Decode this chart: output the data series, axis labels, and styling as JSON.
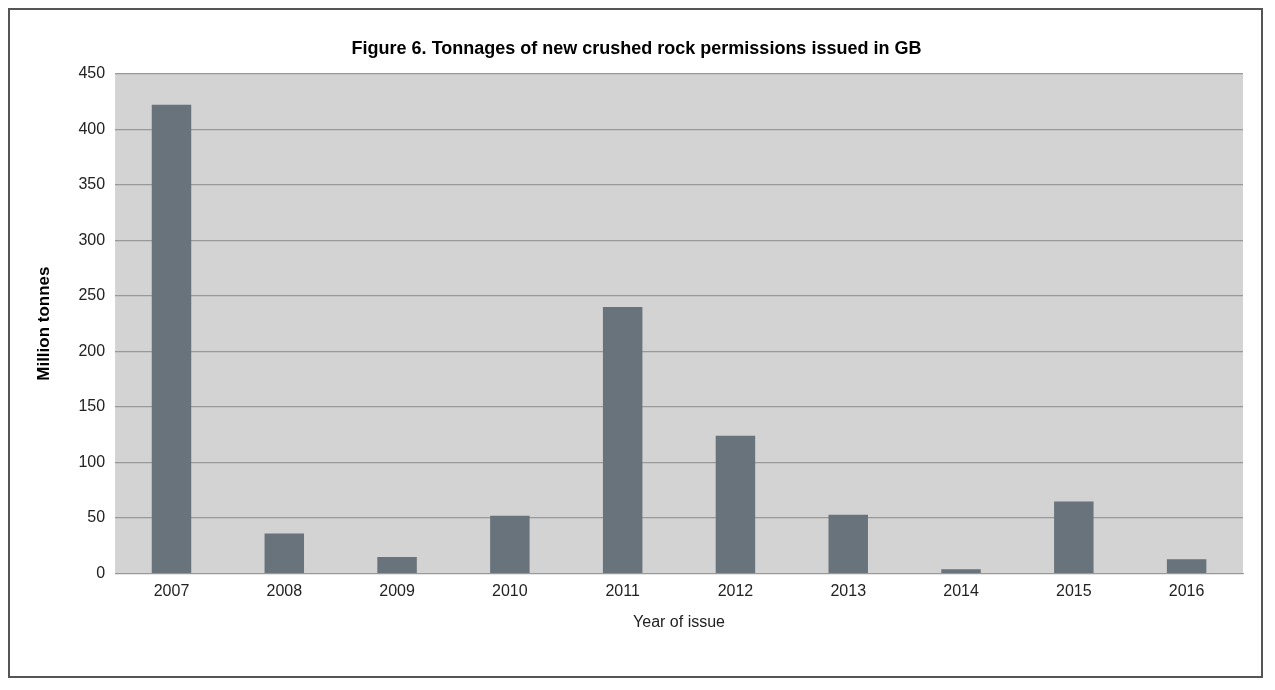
{
  "chart_data": {
    "type": "bar",
    "title": "Figure 6. Tonnages of new crushed rock permissions issued in GB",
    "xlabel": "Year of issue",
    "ylabel": "Million tonnes",
    "categories": [
      "2007",
      "2008",
      "2009",
      "2010",
      "2011",
      "2012",
      "2013",
      "2014",
      "2015",
      "2016"
    ],
    "values": [
      422,
      36,
      15,
      52,
      240,
      124,
      53,
      4,
      65,
      13
    ],
    "color": "#68737b",
    "ylim": [
      0,
      450
    ],
    "yticks": [
      0,
      50,
      100,
      150,
      200,
      250,
      300,
      350,
      400,
      450
    ],
    "grid": "y",
    "legend": false
  }
}
